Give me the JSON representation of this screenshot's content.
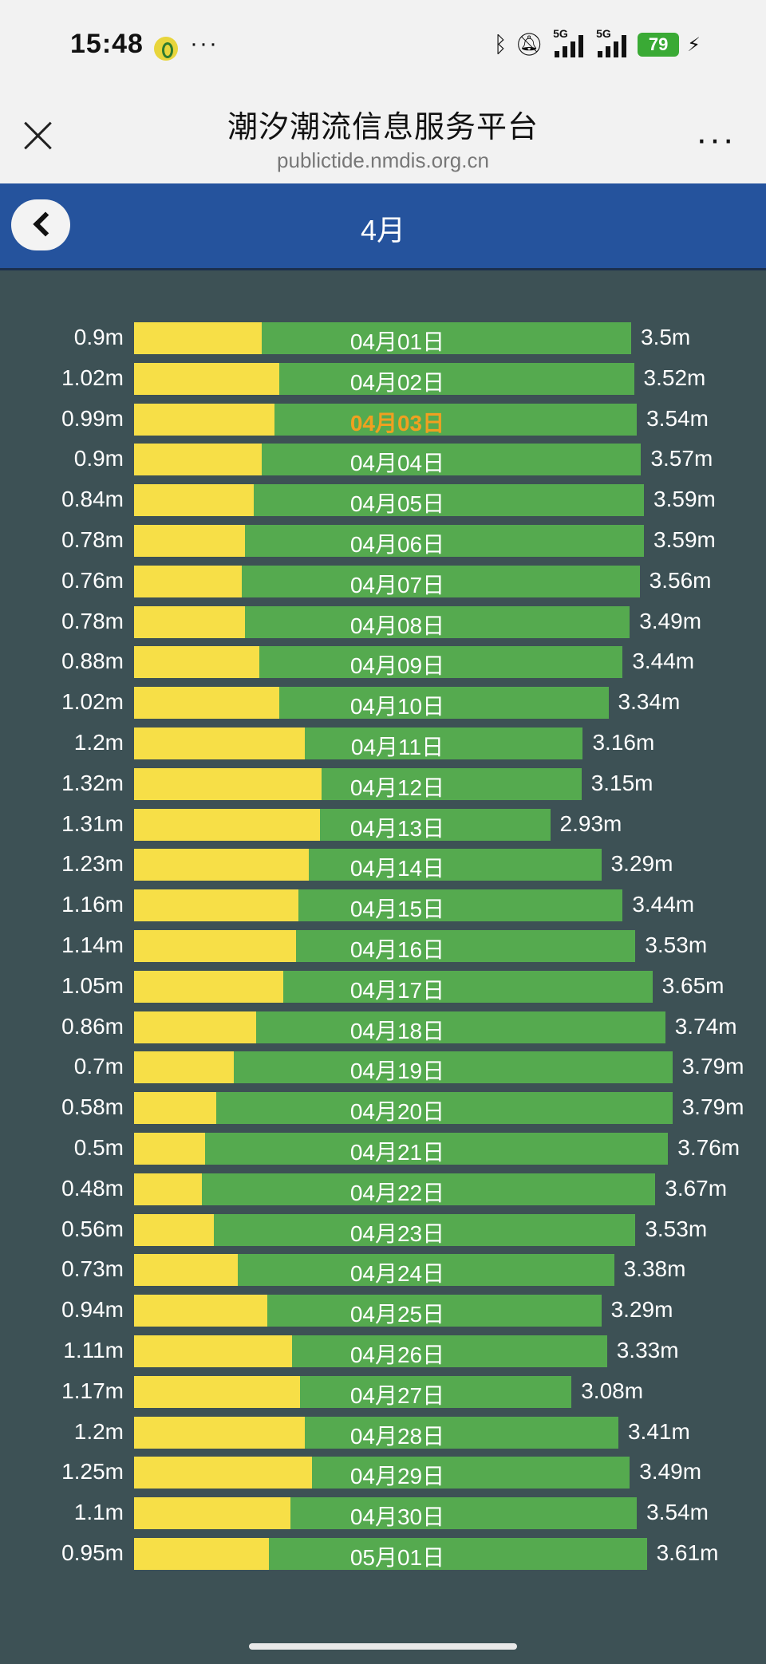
{
  "status_bar": {
    "time": "15:48",
    "dots": "···",
    "bluetooth_icon": "bluetooth-icon",
    "mute_icon": "bell-off-icon",
    "signal_label_1": "5G",
    "signal_label_2": "5G",
    "battery": "79"
  },
  "nav": {
    "title": "潮汐潮流信息服务平台",
    "url": "publictide.nmdis.org.cn",
    "more": "···"
  },
  "header": {
    "month": "4月"
  },
  "colors": {
    "low_bar": "#f7df47",
    "high_bar": "#55aa4f",
    "today_text": "#f0a020",
    "header": "#25539d",
    "background": "#3d5155"
  },
  "chart_data": {
    "type": "bar",
    "highlighted": "04月03日",
    "categories": [
      "04月01日",
      "04月02日",
      "04月03日",
      "04月04日",
      "04月05日",
      "04月06日",
      "04月07日",
      "04月08日",
      "04月09日",
      "04月10日",
      "04月11日",
      "04月12日",
      "04月13日",
      "04月14日",
      "04月15日",
      "04月16日",
      "04月17日",
      "04月18日",
      "04月19日",
      "04月20日",
      "04月21日",
      "04月22日",
      "04月23日",
      "04月24日",
      "04月25日",
      "04月26日",
      "04月27日",
      "04月28日",
      "04月29日",
      "04月30日",
      "05月01日"
    ],
    "low_labels": [
      "0.9m",
      "1.02m",
      "0.99m",
      "0.9m",
      "0.84m",
      "0.78m",
      "0.76m",
      "0.78m",
      "0.88m",
      "1.02m",
      "1.2m",
      "1.32m",
      "1.31m",
      "1.23m",
      "1.16m",
      "1.14m",
      "1.05m",
      "0.86m",
      "0.7m",
      "0.58m",
      "0.5m",
      "0.48m",
      "0.56m",
      "0.73m",
      "0.94m",
      "1.11m",
      "1.17m",
      "1.2m",
      "1.25m",
      "1.1m",
      "0.95m"
    ],
    "high_labels": [
      "3.5m",
      "3.52m",
      "3.54m",
      "3.57m",
      "3.59m",
      "3.59m",
      "3.56m",
      "3.49m",
      "3.44m",
      "3.34m",
      "3.16m",
      "3.15m",
      "2.93m",
      "3.29m",
      "3.44m",
      "3.53m",
      "3.65m",
      "3.74m",
      "3.79m",
      "3.79m",
      "3.76m",
      "3.67m",
      "3.53m",
      "3.38m",
      "3.29m",
      "3.33m",
      "3.08m",
      "3.41m",
      "3.49m",
      "3.54m",
      "3.61m"
    ],
    "low_values": [
      0.9,
      1.02,
      0.99,
      0.9,
      0.84,
      0.78,
      0.76,
      0.78,
      0.88,
      1.02,
      1.2,
      1.32,
      1.31,
      1.23,
      1.16,
      1.14,
      1.05,
      0.86,
      0.7,
      0.58,
      0.5,
      0.48,
      0.56,
      0.73,
      0.94,
      1.11,
      1.17,
      1.2,
      1.25,
      1.1,
      0.95
    ],
    "high_values": [
      3.5,
      3.52,
      3.54,
      3.57,
      3.59,
      3.59,
      3.56,
      3.49,
      3.44,
      3.34,
      3.16,
      3.15,
      2.93,
      3.29,
      3.44,
      3.53,
      3.65,
      3.74,
      3.79,
      3.79,
      3.76,
      3.67,
      3.53,
      3.38,
      3.29,
      3.33,
      3.08,
      3.41,
      3.49,
      3.54,
      3.61
    ]
  }
}
